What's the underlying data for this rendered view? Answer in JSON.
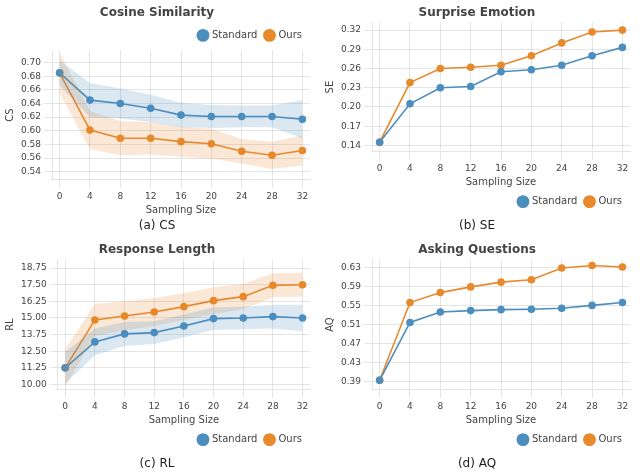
{
  "chart_data": [
    {
      "type": "line",
      "title": "Cosine Similarity",
      "x_label": "Sampling Size",
      "y_label": "CS",
      "annotation": "(a) CS",
      "legend": "upper right",
      "grid": true,
      "marker": "circle",
      "x": [
        0,
        4,
        8,
        12,
        16,
        20,
        24,
        28,
        32
      ],
      "xlim": [
        -1.0,
        33.0
      ],
      "xticks": [
        0,
        4,
        8,
        12,
        16,
        20,
        24,
        28,
        32
      ],
      "ylim": [
        0.528,
        0.718
      ],
      "yticks": [
        0.54,
        0.56,
        0.58,
        {
          "value": 0.6,
          "label": "0.60"
        },
        0.62,
        0.64,
        0.66,
        0.68,
        {
          "value": 0.7,
          "label": "0.70"
        }
      ],
      "series": [
        {
          "name": "Standard",
          "color": "#4C8EBE",
          "values": [
            0.685,
            0.645,
            0.64,
            0.633,
            0.623,
            0.621,
            0.621,
            0.621,
            0.617
          ],
          "std": [
            0.018,
            0.025,
            0.022,
            0.02,
            0.018,
            0.017,
            0.016,
            0.016,
            0.028
          ]
        },
        {
          "name": "Ours",
          "color": "#E8892B",
          "values": [
            0.685,
            0.601,
            0.589,
            0.589,
            0.584,
            0.581,
            0.57,
            0.564,
            0.571
          ],
          "std": [
            0.03,
            0.028,
            0.025,
            0.024,
            0.022,
            0.022,
            0.018,
            0.02,
            0.022
          ]
        }
      ]
    },
    {
      "type": "line",
      "title": "Surprise Emotion",
      "x_label": "Sampling Size",
      "y_label": "SE",
      "annotation": "(b) SE",
      "legend": "lower right",
      "grid": true,
      "marker": "circle",
      "x": [
        0,
        4,
        8,
        12,
        16,
        20,
        24,
        28,
        32
      ],
      "xlim": [
        -1.0,
        33.0
      ],
      "xticks": [
        0,
        4,
        8,
        12,
        16,
        20,
        24,
        28,
        32
      ],
      "ylim": [
        0.13,
        0.332
      ],
      "yticks": [
        0.14,
        0.17,
        {
          "value": 0.2,
          "label": "0.20"
        },
        0.23,
        0.26,
        0.29,
        0.32
      ],
      "series": [
        {
          "name": "Standard",
          "color": "#4C8EBE",
          "values": [
            0.145,
            0.205,
            0.23,
            0.232,
            0.255,
            0.258,
            0.265,
            0.28,
            0.293
          ]
        },
        {
          "name": "Ours",
          "color": "#E8892B",
          "values": [
            0.145,
            0.238,
            0.26,
            0.262,
            0.265,
            0.28,
            0.3,
            0.317,
            0.32
          ]
        }
      ]
    },
    {
      "type": "line",
      "title": "Response Length",
      "x_label": "Sampling Size",
      "y_label": "RL",
      "annotation": "(c) RL",
      "legend": "lower right",
      "grid": true,
      "marker": "circle",
      "x": [
        0,
        4,
        8,
        12,
        16,
        20,
        24,
        28,
        32
      ],
      "xlim": [
        -1.0,
        33.0
      ],
      "xticks": [
        0,
        4,
        8,
        12,
        16,
        20,
        24,
        28,
        32
      ],
      "ylim": [
        9.6,
        19.4
      ],
      "yticks": [
        {
          "value": 10,
          "label": "10.00"
        },
        11.25,
        {
          "value": 12.5,
          "label": "12.50"
        },
        13.75,
        {
          "value": 15,
          "label": "15.00"
        },
        16.25,
        {
          "value": 17.5,
          "label": "17.50"
        },
        18.75
      ],
      "series": [
        {
          "name": "Standard",
          "color": "#4C8EBE",
          "values": [
            11.25,
            13.2,
            13.8,
            13.9,
            14.4,
            14.95,
            15.0,
            15.1,
            15.0
          ],
          "std": [
            1.2,
            1.0,
            0.9,
            0.85,
            0.85,
            0.85,
            0.85,
            0.9,
            1.0
          ]
        },
        {
          "name": "Ours",
          "color": "#E8892B",
          "values": [
            11.25,
            14.85,
            15.15,
            15.45,
            15.85,
            16.3,
            16.6,
            17.45,
            17.5
          ],
          "std": [
            1.4,
            1.2,
            1.1,
            1.05,
            1.0,
            1.0,
            0.95,
            0.9,
            0.9
          ]
        }
      ]
    },
    {
      "type": "line",
      "title": "Asking Questions",
      "x_label": "Sampling Size",
      "y_label": "AQ",
      "annotation": "(d) AQ",
      "legend": "lower right",
      "grid": true,
      "marker": "circle",
      "x": [
        0,
        4,
        8,
        12,
        16,
        20,
        24,
        28,
        32
      ],
      "xlim": [
        -1.0,
        33.0
      ],
      "xticks": [
        0,
        4,
        8,
        12,
        16,
        20,
        24,
        28,
        32
      ],
      "ylim": [
        0.373,
        0.648
      ],
      "yticks": [
        0.39,
        0.43,
        0.47,
        0.51,
        0.55,
        0.59,
        0.63
      ],
      "series": [
        {
          "name": "Standard",
          "color": "#4C8EBE",
          "values": [
            0.393,
            0.515,
            0.537,
            0.54,
            0.542,
            0.543,
            0.545,
            0.551,
            0.557
          ]
        },
        {
          "name": "Ours",
          "color": "#E8892B",
          "values": [
            0.393,
            0.557,
            0.578,
            0.59,
            0.6,
            0.605,
            0.63,
            0.635,
            0.632
          ]
        }
      ]
    }
  ]
}
